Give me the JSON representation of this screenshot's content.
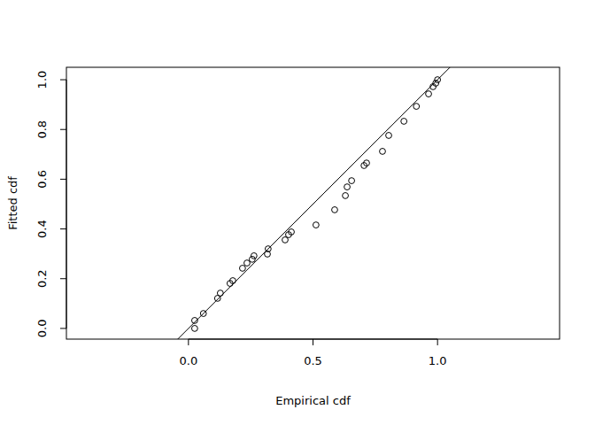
{
  "chart_data": {
    "type": "scatter",
    "x_label": "Empirical cdf",
    "y_label": "Fitted cdf",
    "x": [
      0.025,
      0.025,
      0.06,
      0.117,
      0.128,
      0.167,
      0.178,
      0.217,
      0.235,
      0.256,
      0.263,
      0.317,
      0.32,
      0.388,
      0.402,
      0.413,
      0.512,
      0.587,
      0.63,
      0.637,
      0.655,
      0.705,
      0.715,
      0.779,
      0.804,
      0.865,
      0.915,
      0.964,
      0.982,
      0.993,
      1.0
    ],
    "y": [
      0.0,
      0.032,
      0.06,
      0.121,
      0.142,
      0.181,
      0.192,
      0.242,
      0.263,
      0.278,
      0.292,
      0.299,
      0.32,
      0.356,
      0.377,
      0.388,
      0.416,
      0.477,
      0.534,
      0.569,
      0.594,
      0.655,
      0.665,
      0.712,
      0.776,
      0.833,
      0.893,
      0.943,
      0.972,
      0.986,
      1.0
    ],
    "reference_line": {
      "intercept": 0,
      "slope": 1
    },
    "xlim": [
      -0.49,
      1.49
    ],
    "ylim": [
      -0.043,
      1.05
    ],
    "xticks": [
      {
        "value": 0,
        "label": "0.0"
      },
      0.5,
      {
        "value": 1,
        "label": "1.0"
      }
    ],
    "yticks": [
      {
        "value": 0,
        "label": "0.0"
      },
      0.2,
      0.4,
      0.6,
      0.8,
      {
        "value": 1,
        "label": "1.0"
      }
    ],
    "marker": "circle-open",
    "color": "#000000",
    "grid": false
  }
}
